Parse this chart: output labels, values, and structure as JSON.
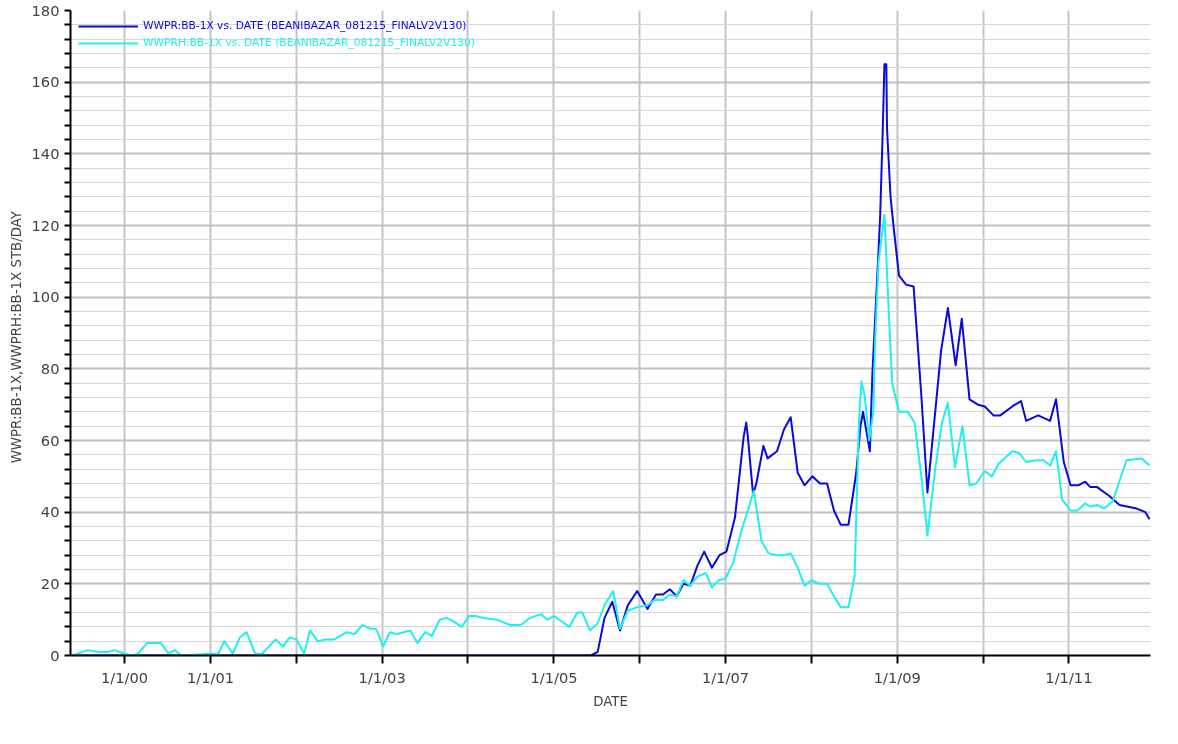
{
  "chart_data": {
    "type": "line",
    "xlabel": "DATE",
    "ylabel": "WWPR:BB-1X,WWPRH:BB-1X   STB/DAY",
    "xlim": [
      "1999-05-16",
      "2011-12-14"
    ],
    "xticks": [
      {
        "value": "2000-01-01",
        "label": "1/1/00"
      },
      {
        "value": "2001-01-01",
        "label": "1/1/01"
      },
      {
        "value": "2002-01-01",
        "label": null
      },
      {
        "value": "2003-01-01",
        "label": "1/1/03"
      },
      {
        "value": "2004-01-01",
        "label": null
      },
      {
        "value": "2005-01-01",
        "label": "1/1/05"
      },
      {
        "value": "2006-01-01",
        "label": null
      },
      {
        "value": "2007-01-01",
        "label": "1/1/07"
      },
      {
        "value": "2008-01-01",
        "label": null
      },
      {
        "value": "2009-01-01",
        "label": "1/1/09"
      },
      {
        "value": "2010-01-01",
        "label": null
      },
      {
        "value": "2011-01-01",
        "label": "1/1/11"
      }
    ],
    "ylim": [
      0,
      180
    ],
    "yticks": [
      0,
      {
        "value": 4,
        "label": null
      },
      {
        "value": 8,
        "label": null
      },
      {
        "value": 12,
        "label": null
      },
      {
        "value": 16,
        "label": null
      },
      20,
      {
        "value": 24,
        "label": null
      },
      {
        "value": 28,
        "label": null
      },
      {
        "value": 32,
        "label": null
      },
      {
        "value": 36,
        "label": null
      },
      40,
      {
        "value": 44,
        "label": null
      },
      {
        "value": 48,
        "label": null
      },
      {
        "value": 52,
        "label": null
      },
      {
        "value": 56,
        "label": null
      },
      60,
      {
        "value": 64,
        "label": null
      },
      {
        "value": 68,
        "label": null
      },
      {
        "value": 72,
        "label": null
      },
      {
        "value": 76,
        "label": null
      },
      80,
      {
        "value": 84,
        "label": null
      },
      {
        "value": 88,
        "label": null
      },
      {
        "value": 92,
        "label": null
      },
      {
        "value": 96,
        "label": null
      },
      100,
      {
        "value": 104,
        "label": null
      },
      {
        "value": 108,
        "label": null
      },
      {
        "value": 112,
        "label": null
      },
      {
        "value": 116,
        "label": null
      },
      120,
      {
        "value": 124,
        "label": null
      },
      {
        "value": 128,
        "label": null
      },
      {
        "value": 132,
        "label": null
      },
      {
        "value": 136,
        "label": null
      },
      140,
      {
        "value": 144,
        "label": null
      },
      {
        "value": 148,
        "label": null
      },
      {
        "value": 152,
        "label": null
      },
      {
        "value": 156,
        "label": null
      },
      160,
      {
        "value": 164,
        "label": null
      },
      {
        "value": 168,
        "label": null
      },
      {
        "value": 172,
        "label": null
      },
      {
        "value": 176,
        "label": null
      },
      180
    ],
    "grid": true,
    "legend": "top left",
    "line_style": "solid",
    "marker": "none",
    "series": [
      {
        "name": "WWPR:BB-1X vs. DATE (BEANIBAZAR_081215_FINALV2V130)",
        "color": "#0a0adc",
        "x": [
          "1999-05-23",
          "2005-06-07",
          "2005-07-06",
          "2005-08-04",
          "2005-09-06",
          "2005-10-09",
          "2005-11-11",
          "2005-12-21",
          "2006-02-03",
          "2006-03-11",
          "2006-04-10",
          "2006-05-09",
          "2006-06-07",
          "2006-07-06",
          "2006-08-04",
          "2006-09-03",
          "2006-10-02",
          "2006-11-04",
          "2006-12-06",
          "2007-01-05",
          "2007-02-10",
          "2007-03-19",
          "2007-03-30",
          "2007-04-06",
          "2007-04-28",
          "2007-05-12",
          "2007-06-11",
          "2007-06-29",
          "2007-08-08",
          "2007-09-06",
          "2007-10-05",
          "2007-11-04",
          "2007-12-03",
          "2008-01-05",
          "2008-02-07",
          "2008-03-08",
          "2008-04-06",
          "2008-05-05",
          "2008-06-07",
          "2008-07-10",
          "2008-07-28",
          "2008-08-08",
          "2008-09-06",
          "2008-09-17",
          "2008-10-13",
          "2008-10-20",
          "2008-10-31",
          "2008-11-07",
          "2008-11-15",
          "2008-11-18",
          "2008-12-03",
          "2008-12-17",
          "2009-01-08",
          "2009-02-07",
          "2009-03-11",
          "2009-04-13",
          "2009-05-09",
          "2009-06-11",
          "2009-07-06",
          "2009-08-04",
          "2009-09-06",
          "2009-10-02",
          "2009-11-04",
          "2009-12-10",
          "2010-01-08",
          "2010-02-14",
          "2010-03-15",
          "2010-05-05",
          "2010-06-11",
          "2010-07-03",
          "2010-08-23",
          "2010-10-13",
          "2010-11-07",
          "2010-12-10",
          "2011-01-08",
          "2011-02-10",
          "2011-03-11",
          "2011-04-02",
          "2011-05-01",
          "2011-06-22",
          "2011-08-04",
          "2011-10-16",
          "2011-11-22",
          "2011-12-10"
        ],
        "values": [
          0,
          0,
          1,
          10.5,
          15,
          7,
          14,
          18,
          13,
          17,
          17,
          18.5,
          16.5,
          20,
          19.5,
          25,
          29,
          24.5,
          28,
          29,
          38.5,
          61,
          65,
          61,
          45,
          48,
          58.5,
          55,
          57,
          63,
          66.5,
          51,
          47.5,
          50,
          48,
          48,
          40.5,
          36.5,
          36.5,
          51,
          64,
          68,
          57,
          79,
          113,
          123,
          147,
          165,
          165,
          147,
          128,
          119,
          106,
          103.5,
          103,
          72.5,
          45.5,
          68,
          85,
          97,
          81,
          94,
          71.5,
          70,
          69.5,
          67,
          67,
          69.5,
          71,
          65.5,
          67,
          65.5,
          71.5,
          54,
          47.5,
          47.5,
          48.5,
          47,
          47,
          44.5,
          42,
          41,
          40,
          38
        ]
      },
      {
        "name": "WWPRH:BB-1X vs. DATE (BEANIBAZAR_081215_FINALV2V130)",
        "color": "#20f0f0",
        "x": [
          "1999-05-23",
          "1999-07-28",
          "1999-09-14",
          "1999-10-20",
          "1999-11-18",
          "2000-01-01",
          "2000-01-30",
          "2000-02-28",
          "2000-04-06",
          "2000-06-03",
          "2000-07-06",
          "2000-08-01",
          "2000-08-30",
          "2000-12-25",
          "2001-02-03",
          "2001-02-28",
          "2001-04-06",
          "2001-05-05",
          "2001-06-03",
          "2001-07-10",
          "2001-08-08",
          "2001-10-05",
          "2001-11-04",
          "2001-12-03",
          "2002-01-01",
          "2002-02-03",
          "2002-02-28",
          "2002-04-02",
          "2002-05-05",
          "2002-06-11",
          "2002-08-04",
          "2002-09-06",
          "2002-10-09",
          "2002-11-11",
          "2002-12-06",
          "2003-01-05",
          "2003-02-03",
          "2003-03-04",
          "2003-05-01",
          "2003-05-31",
          "2003-07-03",
          "2003-08-01",
          "2003-09-03",
          "2003-10-02",
          "2003-10-31",
          "2003-12-06",
          "2004-01-05",
          "2004-02-03",
          "2004-03-04",
          "2004-05-01",
          "2004-06-29",
          "2004-08-12",
          "2004-09-21",
          "2004-11-07",
          "2004-12-03",
          "2005-01-01",
          "2005-02-03",
          "2005-03-08",
          "2005-04-10",
          "2005-05-01",
          "2005-06-03",
          "2005-07-06",
          "2005-08-04",
          "2005-09-10",
          "2005-10-09",
          "2005-11-11",
          "2005-12-21",
          "2006-02-03",
          "2006-03-04",
          "2006-04-10",
          "2006-05-09",
          "2006-06-07",
          "2006-07-06",
          "2006-08-04",
          "2006-09-03",
          "2006-10-09",
          "2006-11-04",
          "2006-12-03",
          "2007-01-01",
          "2007-02-03",
          "2007-03-08",
          "2007-04-06",
          "2007-05-01",
          "2007-06-03",
          "2007-07-03",
          "2007-08-08",
          "2007-09-06",
          "2007-10-05",
          "2007-11-04",
          "2007-12-03",
          "2008-01-01",
          "2008-02-07",
          "2008-03-08",
          "2008-04-06",
          "2008-05-05",
          "2008-06-07",
          "2008-07-03",
          "2008-07-21",
          "2008-08-01",
          "2008-08-15",
          "2008-09-03",
          "2008-09-21",
          "2008-09-28",
          "2008-10-13",
          "2008-11-07",
          "2008-11-26",
          "2008-12-10",
          "2009-01-08",
          "2009-02-14",
          "2009-03-15",
          "2009-04-13",
          "2009-05-09",
          "2009-06-11",
          "2009-07-10",
          "2009-08-04",
          "2009-09-03",
          "2009-10-05",
          "2009-11-04",
          "2009-12-03",
          "2010-01-08",
          "2010-02-07",
          "2010-03-08",
          "2010-05-05",
          "2010-06-03",
          "2010-07-03",
          "2010-08-15",
          "2010-09-14",
          "2010-10-13",
          "2010-11-07",
          "2010-12-03",
          "2011-01-08",
          "2011-02-07",
          "2011-03-11",
          "2011-04-02",
          "2011-05-01",
          "2011-05-31",
          "2011-07-06",
          "2011-09-03",
          "2011-11-07",
          "2011-12-10"
        ],
        "values": [
          0,
          1.5,
          1,
          1,
          1.5,
          0.5,
          0,
          0.5,
          3.5,
          3.5,
          0.5,
          1.5,
          0,
          0.5,
          0.5,
          4,
          0.5,
          5,
          6.5,
          0.5,
          0.5,
          4.5,
          2.5,
          5,
          4.5,
          0.5,
          7,
          4,
          4.5,
          4.5,
          6.5,
          6,
          8.5,
          7.5,
          7.5,
          2.5,
          6.5,
          6,
          7,
          3.5,
          6.5,
          5.5,
          10,
          10.5,
          9.5,
          8,
          11,
          11,
          10.5,
          10,
          8.5,
          8.5,
          10.5,
          11.5,
          10,
          11,
          9.5,
          8,
          12,
          12,
          7,
          9,
          14,
          18,
          7.5,
          12.5,
          13.5,
          14,
          15.5,
          15.5,
          17,
          16.5,
          21,
          19.5,
          22,
          23,
          19,
          21,
          21.5,
          26,
          34.5,
          40.5,
          46,
          32,
          28.5,
          28,
          28,
          28.5,
          24.5,
          19.5,
          21,
          20,
          20,
          16.5,
          13.5,
          13.5,
          22,
          64,
          76.5,
          72.5,
          60,
          68,
          87,
          110,
          123,
          95,
          76,
          68,
          68,
          65,
          50,
          33.5,
          52,
          65,
          70.5,
          52.5,
          64,
          47.5,
          48,
          51.5,
          50,
          53.5,
          57,
          56.5,
          54,
          54.5,
          54.5,
          53,
          57,
          43.5,
          40.5,
          40.5,
          42.5,
          41.5,
          42,
          41,
          43,
          54.5,
          55,
          53
        ]
      }
    ]
  }
}
